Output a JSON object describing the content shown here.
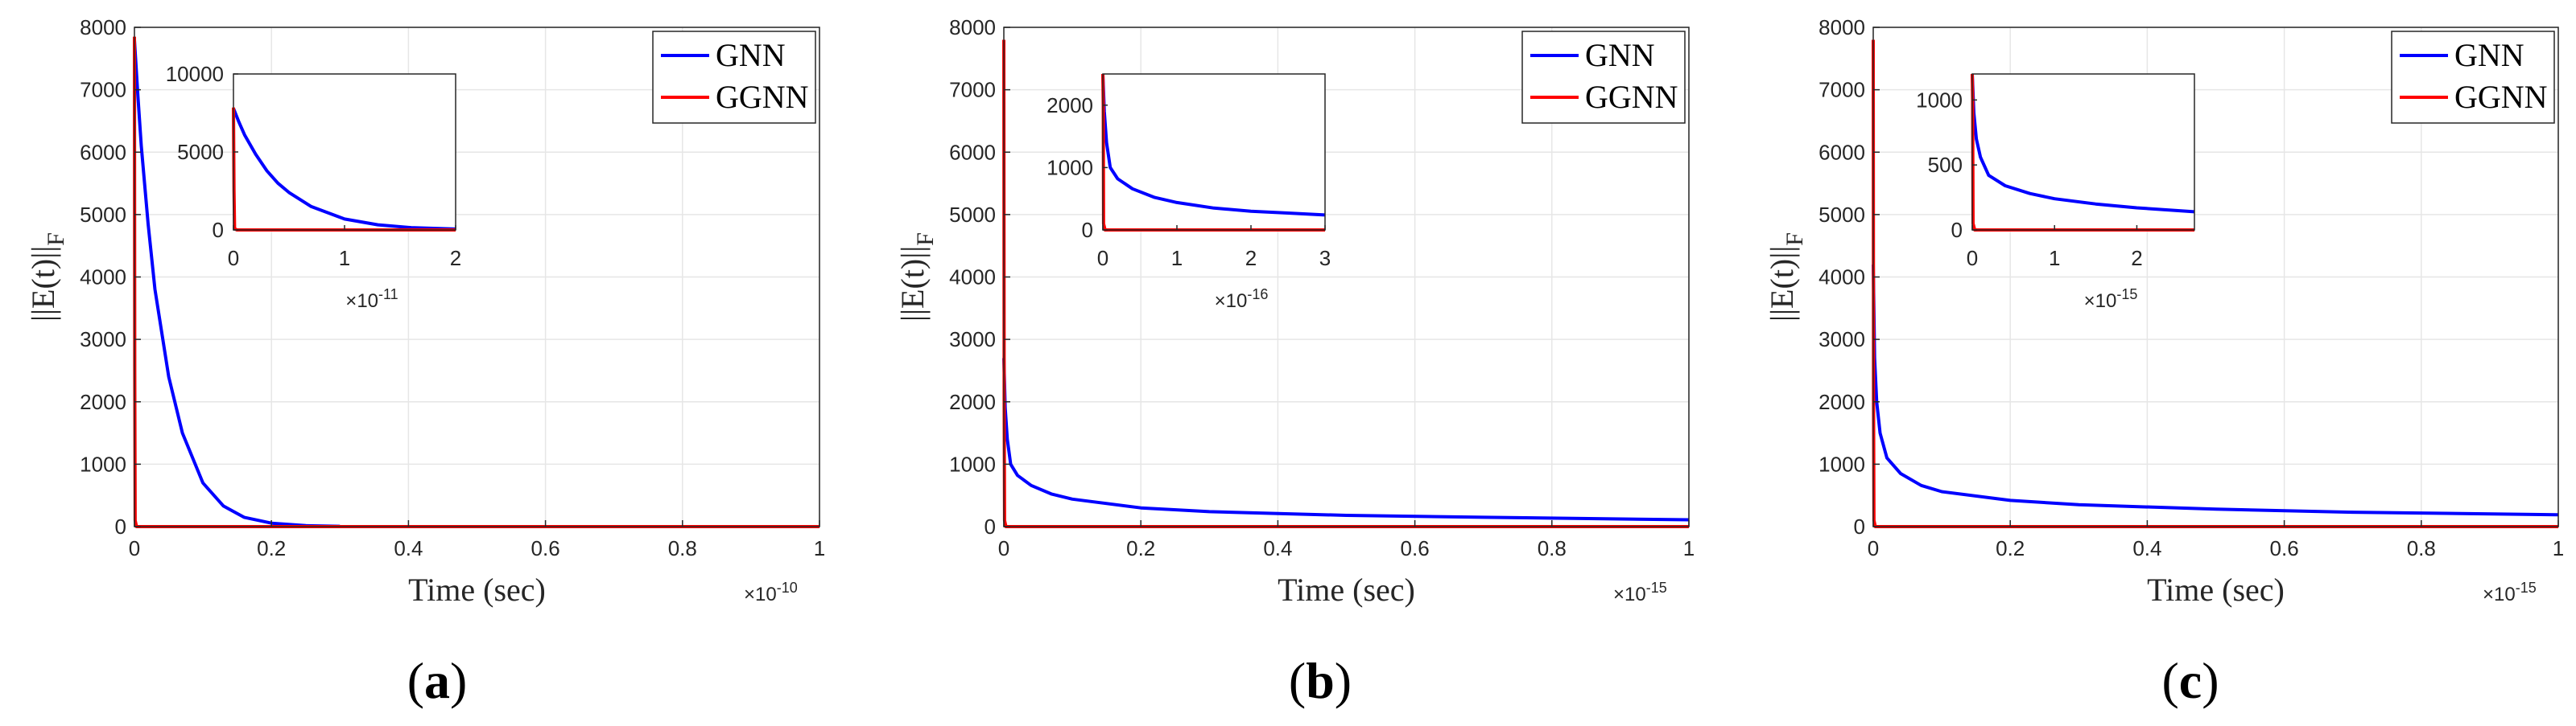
{
  "colors": {
    "gnn": "#0000ff",
    "ggnn": "#ff0000",
    "grid": "#e6e6e6",
    "axis": "#262626"
  },
  "panels": [
    {
      "label": "(a)",
      "label_letter": "a",
      "xlabel": "Time (sec)",
      "ylabel": "||E(t)||",
      "ylabel_sub": "F",
      "x_exponent": "×10",
      "x_exponent_power": "-10",
      "legend": [
        "GNN",
        "GGNN"
      ],
      "inset": {
        "x_exponent": "×10",
        "x_exponent_power": "-11"
      }
    },
    {
      "label": "(b)",
      "label_letter": "b",
      "xlabel": "Time (sec)",
      "ylabel": "||E(t)||",
      "ylabel_sub": "F",
      "x_exponent": "×10",
      "x_exponent_power": "-15",
      "legend": [
        "GNN",
        "GGNN"
      ],
      "inset": {
        "x_exponent": "×10",
        "x_exponent_power": "-16"
      }
    },
    {
      "label": "(c)",
      "label_letter": "c",
      "xlabel": "Time (sec)",
      "ylabel": "||E(t)||",
      "ylabel_sub": "F",
      "x_exponent": "×10",
      "x_exponent_power": "-15",
      "legend": [
        "GNN",
        "GGNN"
      ],
      "inset": {
        "x_exponent": "×10",
        "x_exponent_power": "-15"
      }
    }
  ],
  "chart_data": [
    {
      "type": "line",
      "xlabel": "Time (sec)",
      "ylabel": "||E(t)||F",
      "x_scale": "×10^-10",
      "xlim": [
        0,
        1
      ],
      "ylim": [
        0,
        8000
      ],
      "xticks": [
        0,
        0.2,
        0.4,
        0.6,
        0.8,
        1
      ],
      "yticks": [
        0,
        1000,
        2000,
        3000,
        4000,
        5000,
        6000,
        7000,
        8000
      ],
      "grid": true,
      "legend_position": "top-right",
      "series": [
        {
          "name": "GNN",
          "color": "#0000ff",
          "x": [
            0,
            0.005,
            0.01,
            0.02,
            0.03,
            0.05,
            0.07,
            0.1,
            0.13,
            0.16,
            0.2,
            0.25,
            0.3
          ],
          "y": [
            7800,
            6900,
            6100,
            4850,
            3800,
            2400,
            1500,
            700,
            330,
            150,
            55,
            15,
            5
          ]
        },
        {
          "name": "GGNN",
          "color": "#ff0000",
          "x": [
            0,
            0.0005,
            0.001,
            0.003,
            1
          ],
          "y": [
            7850,
            2500,
            100,
            0,
            0
          ]
        }
      ],
      "inset": {
        "x_scale": "×10^-11",
        "xlim": [
          0,
          2
        ],
        "ylim": [
          0,
          10000
        ],
        "xticks": [
          0,
          1,
          2
        ],
        "yticks": [
          0,
          5000,
          10000
        ],
        "series": [
          {
            "name": "GNN",
            "color": "#0000ff",
            "x": [
              0,
              0.05,
              0.1,
              0.2,
              0.3,
              0.4,
              0.5,
              0.7,
              1.0,
              1.3,
              1.6,
              2.0
            ],
            "y": [
              7800,
              6900,
              6100,
              4850,
              3800,
              3000,
              2400,
              1500,
              700,
              330,
              150,
              55
            ]
          },
          {
            "name": "GGNN",
            "color": "#ff0000",
            "x": [
              0,
              0.005,
              0.01,
              0.03,
              2.0
            ],
            "y": [
              7850,
              2500,
              100,
              0,
              0
            ]
          }
        ]
      }
    },
    {
      "type": "line",
      "xlabel": "Time (sec)",
      "ylabel": "||E(t)||F",
      "x_scale": "×10^-15",
      "xlim": [
        0,
        1
      ],
      "ylim": [
        0,
        8000
      ],
      "xticks": [
        0,
        0.2,
        0.4,
        0.6,
        0.8,
        1
      ],
      "yticks": [
        0,
        1000,
        2000,
        3000,
        4000,
        5000,
        6000,
        7000,
        8000
      ],
      "grid": true,
      "legend_position": "top-right",
      "series": [
        {
          "name": "GNN",
          "color": "#0000ff",
          "x": [
            0,
            0.002,
            0.005,
            0.01,
            0.02,
            0.04,
            0.07,
            0.1,
            0.2,
            0.3,
            0.5,
            0.7,
            1.0
          ],
          "y": [
            2700,
            1900,
            1400,
            1000,
            820,
            660,
            520,
            440,
            300,
            240,
            180,
            150,
            110
          ]
        },
        {
          "name": "GGNN",
          "color": "#ff0000",
          "x": [
            0,
            0.0005,
            0.001,
            0.003,
            1
          ],
          "y": [
            7800,
            2000,
            100,
            0,
            0
          ]
        }
      ],
      "inset": {
        "x_scale": "×10^-16",
        "xlim": [
          0,
          3
        ],
        "ylim": [
          0,
          2500
        ],
        "xticks": [
          0,
          1,
          2,
          3
        ],
        "yticks": [
          0,
          1000,
          2000
        ],
        "series": [
          {
            "name": "GNN",
            "color": "#0000ff",
            "x": [
              0,
              0.02,
              0.05,
              0.1,
              0.2,
              0.4,
              0.7,
              1.0,
              1.5,
              2.0,
              2.5,
              3.0
            ],
            "y": [
              2700,
              1900,
              1400,
              1000,
              820,
              660,
              520,
              440,
              350,
              300,
              270,
              240
            ]
          },
          {
            "name": "GGNN",
            "color": "#ff0000",
            "x": [
              0,
              0.005,
              0.01,
              0.03,
              3.0
            ],
            "y": [
              2500,
              2000,
              100,
              0,
              0
            ]
          }
        ]
      }
    },
    {
      "type": "line",
      "xlabel": "Time (sec)",
      "ylabel": "||E(t)||F",
      "x_scale": "×10^-15",
      "xlim": [
        0,
        1
      ],
      "ylim": [
        0,
        8000
      ],
      "xticks": [
        0,
        0.2,
        0.4,
        0.6,
        0.8,
        1
      ],
      "yticks": [
        0,
        1000,
        2000,
        3000,
        4000,
        5000,
        6000,
        7000,
        8000
      ],
      "grid": true,
      "legend_position": "top-right",
      "series": [
        {
          "name": "GNN",
          "color": "#0000ff",
          "x": [
            0,
            0.002,
            0.005,
            0.01,
            0.02,
            0.04,
            0.07,
            0.1,
            0.2,
            0.3,
            0.5,
            0.7,
            1.0
          ],
          "y": [
            4200,
            2700,
            2000,
            1500,
            1100,
            850,
            660,
            560,
            420,
            350,
            280,
            230,
            190
          ]
        },
        {
          "name": "GGNN",
          "color": "#ff0000",
          "x": [
            0,
            0.0005,
            0.001,
            0.003,
            1
          ],
          "y": [
            7800,
            2000,
            100,
            0,
            0
          ]
        }
      ],
      "inset": {
        "x_scale": "×10^-15",
        "xlim": [
          0,
          2.7
        ],
        "ylim": [
          0,
          1200
        ],
        "xticks": [
          0,
          1,
          2
        ],
        "yticks": [
          0,
          500,
          1000
        ],
        "series": [
          {
            "name": "GNN",
            "color": "#0000ff",
            "x": [
              0,
              0.02,
              0.05,
              0.1,
              0.2,
              0.4,
              0.7,
              1.0,
              1.5,
              2.0,
              2.7
            ],
            "y": [
              1200,
              900,
              700,
              560,
              420,
              340,
              280,
              240,
              200,
              170,
              140
            ]
          },
          {
            "name": "GGNN",
            "color": "#ff0000",
            "x": [
              0,
              0.005,
              0.01,
              0.03,
              2.7
            ],
            "y": [
              1200,
              1000,
              50,
              0,
              0
            ]
          }
        ]
      }
    }
  ]
}
